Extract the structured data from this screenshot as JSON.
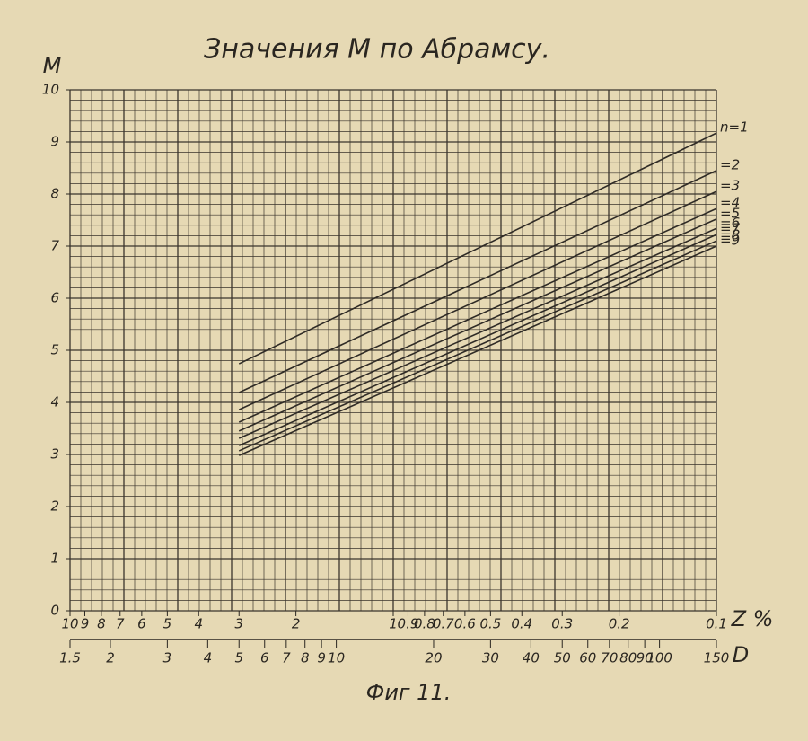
{
  "chart_data": {
    "type": "line",
    "title": "Значения M по Абрамсу.",
    "caption": "Фиг 11.",
    "y_label": "M",
    "x_label": "Z %",
    "x2_label": "D",
    "x": [
      3,
      0.1
    ],
    "xlim": [
      10,
      0.1
    ],
    "xlog": true,
    "xticks": [
      10,
      9,
      8,
      7,
      6,
      5,
      4,
      3,
      2,
      1,
      0.9,
      0.8,
      0.7,
      0.6,
      0.5,
      0.4,
      0.3,
      0.2,
      0.1
    ],
    "x2lim": [
      1.5,
      150
    ],
    "x2log": true,
    "x2ticks": [
      1.5,
      2,
      3,
      4,
      5,
      6,
      7,
      8,
      9,
      10,
      20,
      30,
      40,
      50,
      60,
      70,
      80,
      90,
      100,
      150
    ],
    "ylim": [
      0,
      10
    ],
    "yticks": [
      0,
      1,
      2,
      3,
      4,
      5,
      6,
      7,
      8,
      9,
      10
    ],
    "grid": true,
    "series": [
      {
        "name": "n=1",
        "color": "#2f2b26",
        "values": [
          4.74,
          9.17
        ]
      },
      {
        "name": "=2",
        "color": "#2f2b26",
        "values": [
          4.19,
          8.45
        ]
      },
      {
        "name": "=3",
        "color": "#2f2b26",
        "values": [
          3.86,
          8.05
        ]
      },
      {
        "name": "=4",
        "color": "#2f2b26",
        "values": [
          3.62,
          7.72
        ]
      },
      {
        "name": "=5",
        "color": "#2f2b26",
        "values": [
          3.45,
          7.52
        ]
      },
      {
        "name": "=6",
        "color": "#2f2b26",
        "values": [
          3.31,
          7.34
        ]
      },
      {
        "name": "=7",
        "color": "#2f2b26",
        "values": [
          3.17,
          7.22
        ]
      },
      {
        "name": "=8",
        "color": "#2f2b26",
        "values": [
          3.07,
          7.1
        ]
      },
      {
        "name": "=9",
        "color": "#2f2b26",
        "values": [
          2.98,
          7.0
        ]
      }
    ]
  }
}
